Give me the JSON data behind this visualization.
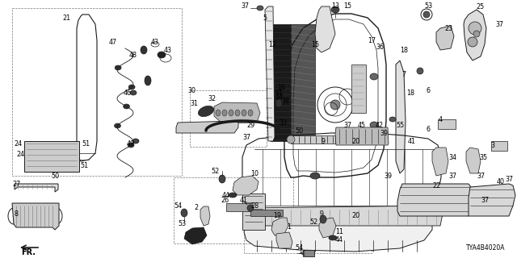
{
  "bg_color": "#ffffff",
  "diagram_code": "TYA4B4020A",
  "line_color": "#1a1a1a",
  "label_fontsize": 5.8,
  "fig_w": 6.4,
  "fig_h": 3.2,
  "dpi": 100
}
